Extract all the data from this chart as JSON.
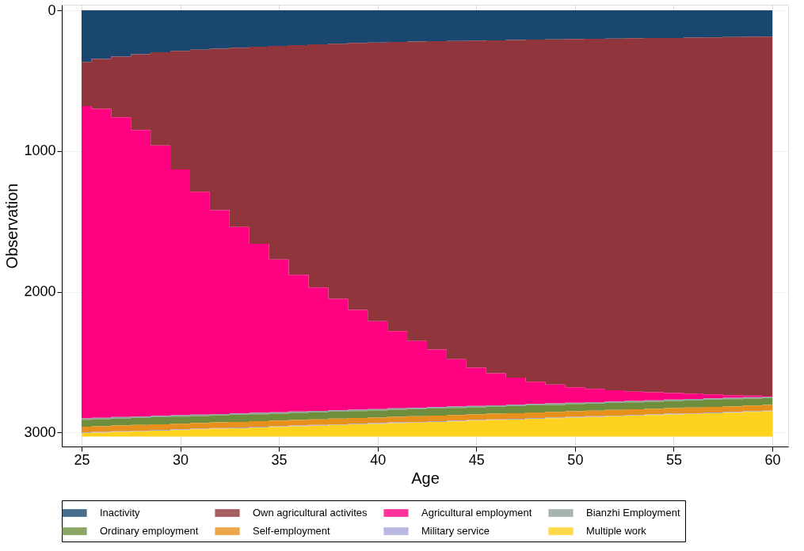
{
  "chart_data": {
    "type": "area",
    "stacked": true,
    "xlabel": "Age",
    "ylabel": "Observation",
    "x": [
      25,
      26,
      27,
      28,
      29,
      30,
      31,
      32,
      33,
      34,
      35,
      36,
      37,
      38,
      39,
      40,
      41,
      42,
      43,
      44,
      45,
      46,
      47,
      48,
      49,
      50,
      51,
      52,
      53,
      54,
      55,
      56,
      57,
      58,
      59,
      60
    ],
    "xlim": [
      24,
      60.8
    ],
    "xticks": [
      25,
      30,
      35,
      40,
      45,
      50,
      55,
      60
    ],
    "ylim": [
      3100,
      -40
    ],
    "yticks": [
      0,
      1000,
      2000,
      3000
    ],
    "grid": true,
    "legend": "bottom",
    "series": [
      {
        "name": "Inactivity",
        "color": "#1a476f",
        "values": [
          366,
          345,
          328,
          312,
          298,
          288,
          280,
          272,
          265,
          258,
          252,
          247,
          242,
          237,
          232,
          228,
          225,
          222,
          219,
          217,
          215,
          213,
          210,
          208,
          206,
          204,
          202,
          200,
          198,
          197,
          196,
          194,
          192,
          190,
          188,
          186
        ]
      },
      {
        "name": "Own agricultural activites",
        "color": "#90353b",
        "values": [
          314,
          355,
          432,
          538,
          662,
          842,
          1010,
          1148,
          1275,
          1402,
          1518,
          1633,
          1728,
          1813,
          1898,
          1982,
          2055,
          2128,
          2191,
          2263,
          2325,
          2367,
          2400,
          2432,
          2454,
          2476,
          2488,
          2500,
          2512,
          2518,
          2524,
          2531,
          2538,
          2545,
          2550,
          2554
        ]
      },
      {
        "name": "Agricultural employment",
        "color": "#ff0080",
        "values": [
          2220,
          2196,
          2131,
          2037,
          1922,
          1748,
          1583,
          1449,
          1325,
          1200,
          1086,
          971,
          877,
          792,
          708,
          624,
          549,
          475,
          410,
          336,
          271,
          227,
          193,
          158,
          134,
          109,
          95,
          80,
          66,
          57,
          47,
          38,
          28,
          19,
          11,
          5
        ]
      },
      {
        "name": "Bianzhi Employment",
        "color": "#8fa39a",
        "values": [
          10,
          10,
          10,
          10,
          10,
          10,
          10,
          10,
          10,
          10,
          10,
          10,
          10,
          10,
          10,
          10,
          10,
          10,
          10,
          10,
          10,
          10,
          10,
          10,
          10,
          10,
          10,
          10,
          10,
          10,
          10,
          10,
          10,
          10,
          10,
          10
        ]
      },
      {
        "name": "Ordinary employment",
        "color": "#6e8e3d",
        "values": [
          50,
          50,
          50,
          50,
          50,
          50,
          50,
          50,
          50,
          50,
          50,
          50,
          50,
          50,
          50,
          50,
          50,
          50,
          50,
          50,
          50,
          50,
          50,
          50,
          50,
          50,
          50,
          50,
          50,
          50,
          50,
          50,
          50,
          50,
          50,
          50
        ]
      },
      {
        "name": "Self-employment",
        "color": "#e8901c",
        "values": [
          40,
          40,
          40,
          40,
          40,
          40,
          40,
          40,
          40,
          40,
          40,
          40,
          40,
          40,
          40,
          40,
          40,
          40,
          40,
          40,
          40,
          40,
          40,
          40,
          40,
          40,
          40,
          40,
          40,
          40,
          40,
          40,
          40,
          40,
          40,
          40
        ]
      },
      {
        "name": "Military service",
        "color": "#a6a6d9",
        "values": [
          5,
          5,
          5,
          5,
          5,
          5,
          5,
          5,
          5,
          5,
          5,
          5,
          5,
          5,
          5,
          5,
          5,
          5,
          5,
          5,
          5,
          5,
          5,
          5,
          5,
          5,
          5,
          5,
          5,
          5,
          5,
          5,
          5,
          5,
          5,
          5
        ]
      },
      {
        "name": "Multiple work",
        "color": "#ffd21f",
        "values": [
          25,
          29,
          34,
          38,
          43,
          47,
          52,
          56,
          60,
          65,
          69,
          74,
          78,
          83,
          87,
          91,
          96,
          100,
          105,
          109,
          114,
          118,
          122,
          127,
          131,
          136,
          140,
          145,
          149,
          153,
          158,
          162,
          167,
          171,
          176,
          180
        ]
      }
    ]
  }
}
